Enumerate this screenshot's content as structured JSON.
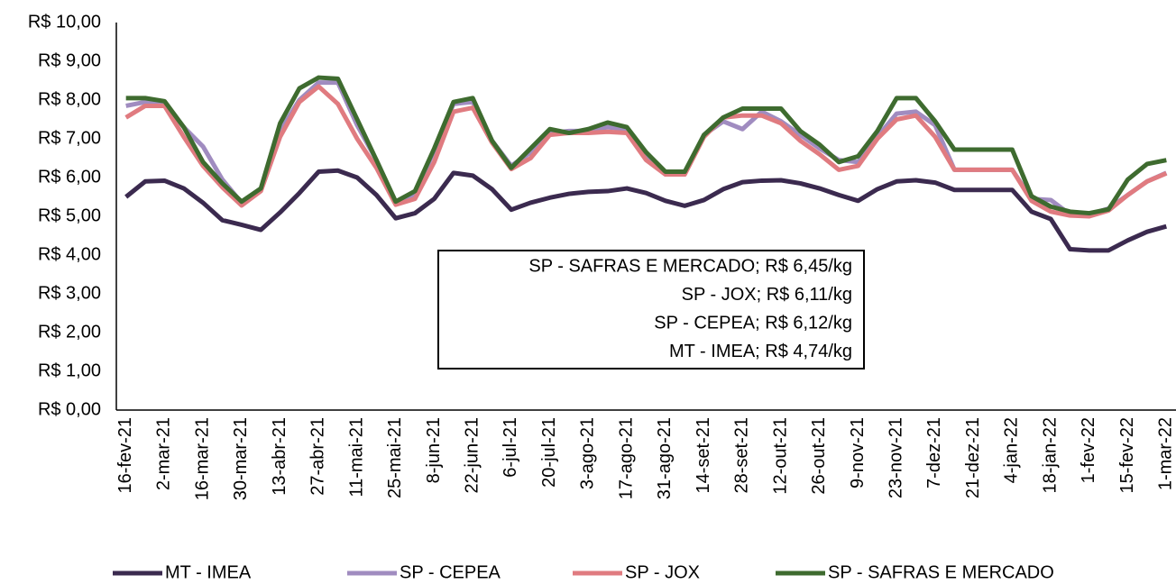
{
  "chart_data": {
    "type": "line",
    "categories": [
      "16-fev-21",
      null,
      "2-mar-21",
      null,
      "16-mar-21",
      null,
      "30-mar-21",
      null,
      "13-abr-21",
      null,
      "27-abr-21",
      null,
      "11-mai-21",
      null,
      "25-mai-21",
      null,
      "8-jun-21",
      null,
      "22-jun-21",
      null,
      "6-jul-21",
      null,
      "20-jul-21",
      null,
      "3-ago-21",
      null,
      "17-ago-21",
      null,
      "31-ago-21",
      null,
      "14-set-21",
      null,
      "28-set-21",
      null,
      "12-out-21",
      null,
      "26-out-21",
      null,
      "9-nov-21",
      null,
      "23-nov-21",
      null,
      "7-dez-21",
      null,
      "21-dez-21",
      null,
      "4-jan-22",
      null,
      "18-jan-22",
      null,
      "1-fev-22",
      null,
      "15-fev-22",
      null,
      "1-mar-22"
    ],
    "series": [
      {
        "name": "MT - IMEA",
        "color": "#3b2a4f",
        "values": [
          5.5,
          5.9,
          5.92,
          5.72,
          5.35,
          4.9,
          4.78,
          4.65,
          5.1,
          5.6,
          6.15,
          6.18,
          6.0,
          5.55,
          4.95,
          5.08,
          5.45,
          6.12,
          6.05,
          5.7,
          5.17,
          5.35,
          5.48,
          5.58,
          5.63,
          5.65,
          5.72,
          5.6,
          5.4,
          5.27,
          5.42,
          5.7,
          5.88,
          5.92,
          5.93,
          5.85,
          5.72,
          5.55,
          5.4,
          5.7,
          5.9,
          5.93,
          5.87,
          5.68,
          5.68,
          5.68,
          5.68,
          5.12,
          4.93,
          4.15,
          4.12,
          4.12,
          4.38,
          4.6,
          4.74
        ]
      },
      {
        "name": "SP - CEPEA",
        "color": "#a08cc0",
        "values": [
          7.85,
          7.95,
          7.92,
          7.3,
          6.8,
          5.95,
          5.35,
          5.68,
          7.2,
          8.0,
          8.45,
          8.45,
          7.35,
          6.45,
          5.35,
          5.55,
          6.7,
          7.9,
          7.95,
          6.95,
          6.3,
          6.65,
          7.15,
          7.2,
          7.2,
          7.3,
          7.25,
          6.55,
          6.1,
          6.1,
          7.1,
          7.45,
          7.25,
          7.7,
          7.45,
          7.1,
          6.75,
          6.45,
          6.4,
          7.05,
          7.65,
          7.7,
          7.35,
          6.2,
          6.2,
          6.2,
          6.2,
          5.45,
          5.42,
          5.05,
          5.05,
          5.2,
          5.55,
          5.9,
          6.12
        ]
      },
      {
        "name": "SP - JOX",
        "color": "#e07b80",
        "values": [
          7.55,
          7.85,
          7.85,
          7.05,
          6.3,
          5.75,
          5.28,
          5.65,
          7.05,
          7.95,
          8.35,
          7.9,
          7.0,
          6.25,
          5.3,
          5.45,
          6.4,
          7.7,
          7.8,
          6.9,
          6.22,
          6.5,
          7.1,
          7.15,
          7.15,
          7.18,
          7.15,
          6.45,
          6.08,
          6.08,
          7.05,
          7.55,
          7.6,
          7.6,
          7.4,
          6.95,
          6.6,
          6.2,
          6.3,
          7.0,
          7.5,
          7.6,
          7.05,
          6.2,
          6.2,
          6.2,
          6.2,
          5.4,
          5.12,
          5.02,
          5.0,
          5.15,
          5.55,
          5.9,
          6.11
        ]
      },
      {
        "name": "SP - SAFRAS E MERCADO",
        "color": "#3e6b2f",
        "values": [
          8.05,
          8.05,
          7.97,
          7.3,
          6.4,
          5.85,
          5.38,
          5.72,
          7.4,
          8.3,
          8.58,
          8.55,
          7.5,
          6.45,
          5.38,
          5.65,
          6.75,
          7.95,
          8.05,
          6.95,
          6.25,
          6.75,
          7.25,
          7.15,
          7.25,
          7.42,
          7.3,
          6.65,
          6.15,
          6.15,
          7.1,
          7.55,
          7.78,
          7.78,
          7.78,
          7.2,
          6.85,
          6.4,
          6.55,
          7.2,
          8.05,
          8.05,
          7.45,
          6.72,
          6.72,
          6.72,
          6.72,
          5.52,
          5.25,
          5.12,
          5.08,
          5.18,
          5.95,
          6.35,
          6.45
        ]
      }
    ],
    "ylim": [
      0,
      10
    ],
    "yticks": [
      {
        "value": 0,
        "label": "R$ 0,00"
      },
      {
        "value": 1,
        "label": "R$ 1,00"
      },
      {
        "value": 2,
        "label": "R$ 2,00"
      },
      {
        "value": 3,
        "label": "R$ 3,00"
      },
      {
        "value": 4,
        "label": "R$ 4,00"
      },
      {
        "value": 5,
        "label": "R$ 5,00"
      },
      {
        "value": 6,
        "label": "R$ 6,00"
      },
      {
        "value": 7,
        "label": "R$ 7,00"
      },
      {
        "value": 8,
        "label": "R$ 8,00"
      },
      {
        "value": 9,
        "label": "R$ 9,00"
      },
      {
        "value": 10,
        "label": "R$ 10,00"
      }
    ],
    "grid": false,
    "legend": "bottom",
    "annotations": [
      "SP - SAFRAS E MERCADO; R$ 6,45/kg",
      "SP - JOX; R$ 6,11/kg",
      "SP - CEPEA; R$ 6,12/kg",
      "MT - IMEA; R$ 4,74/kg"
    ]
  }
}
